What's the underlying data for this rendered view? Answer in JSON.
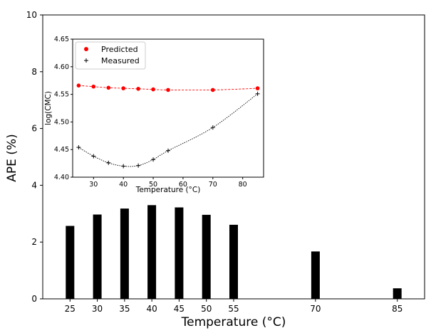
{
  "chart_data": [
    {
      "type": "bar",
      "categories": [
        "25",
        "30",
        "35",
        "40",
        "45",
        "50",
        "55",
        "70",
        "85"
      ],
      "x": [
        25,
        30,
        35,
        40,
        45,
        50,
        55,
        70,
        85
      ],
      "values": [
        2.57,
        2.97,
        3.18,
        3.3,
        3.22,
        2.96,
        2.61,
        1.67,
        0.37
      ],
      "title": "",
      "xlabel": "Temperature (°C)",
      "ylabel": "APE (%)",
      "xlim": [
        20,
        90
      ],
      "ylim": [
        0,
        10
      ],
      "xticks": [
        "25",
        "30",
        "35",
        "40",
        "45",
        "50",
        "55",
        "70",
        "85"
      ],
      "yticks": [
        "0",
        "2",
        "4",
        "6",
        "8",
        "10"
      ],
      "bar_color": "#000000",
      "grid": false
    },
    {
      "type": "line",
      "title": "",
      "xlabel": "Temperature (°C)",
      "ylabel": "log(CMC)",
      "xlim": [
        23,
        87
      ],
      "ylim": [
        4.4,
        4.65
      ],
      "xticks": [
        "30",
        "40",
        "50",
        "60",
        "70",
        "80"
      ],
      "yticks": [
        "4.40",
        "4.45",
        "4.50",
        "4.55",
        "4.60",
        "4.65"
      ],
      "legend_position": "top-left",
      "grid": false,
      "series": [
        {
          "name": "Predicted",
          "color": "#ff0000",
          "marker": "circle",
          "line_style": "dashed",
          "x": [
            25,
            30,
            35,
            40,
            45,
            50,
            55,
            70,
            85
          ],
          "y": [
            4.566,
            4.564,
            4.562,
            4.561,
            4.56,
            4.559,
            4.558,
            4.558,
            4.561
          ]
        },
        {
          "name": "Measured",
          "color": "#000000",
          "marker": "plus",
          "line_style": "dotted",
          "x": [
            25,
            30,
            35,
            40,
            45,
            50,
            55,
            70,
            85
          ],
          "y": [
            4.454,
            4.438,
            4.426,
            4.42,
            4.421,
            4.432,
            4.448,
            4.49,
            4.551
          ]
        }
      ]
    }
  ]
}
